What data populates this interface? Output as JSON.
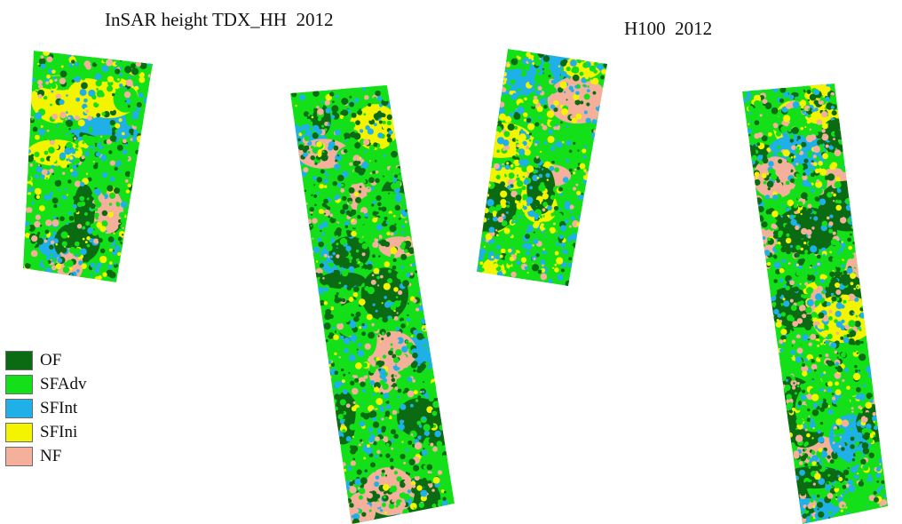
{
  "titles": {
    "left": "InSAR height TDX_HH  2012",
    "right": "H100  2012"
  },
  "classes": [
    {
      "key": "OF",
      "label": "OF",
      "color": "#0b6b12"
    },
    {
      "key": "SFAdv",
      "label": "SFAdv",
      "color": "#14e01a"
    },
    {
      "key": "SFInt",
      "label": "SFInt",
      "color": "#1fb0e8"
    },
    {
      "key": "SFIni",
      "label": "SFIni",
      "color": "#f4f400"
    },
    {
      "key": "NF",
      "label": "NF",
      "color": "#f4b09a"
    }
  ],
  "panels": [
    {
      "name": "map-left-small-strip",
      "base": "SFAdv",
      "mix": {
        "OF": 0.2,
        "SFAdv": 0.3,
        "SFInt": 0.25,
        "SFIni": 0.13,
        "NF": 0.12
      }
    },
    {
      "name": "map-left-tall-strip",
      "base": "SFAdv",
      "mix": {
        "OF": 0.32,
        "SFAdv": 0.3,
        "SFInt": 0.18,
        "SFIni": 0.08,
        "NF": 0.12
      }
    },
    {
      "name": "map-right-small-strip",
      "base": "SFAdv",
      "mix": {
        "OF": 0.14,
        "SFAdv": 0.26,
        "SFInt": 0.28,
        "SFIni": 0.2,
        "NF": 0.12
      }
    },
    {
      "name": "map-right-tall-strip",
      "base": "SFAdv",
      "mix": {
        "OF": 0.25,
        "SFAdv": 0.3,
        "SFInt": 0.2,
        "SFIni": 0.12,
        "NF": 0.13
      }
    }
  ]
}
